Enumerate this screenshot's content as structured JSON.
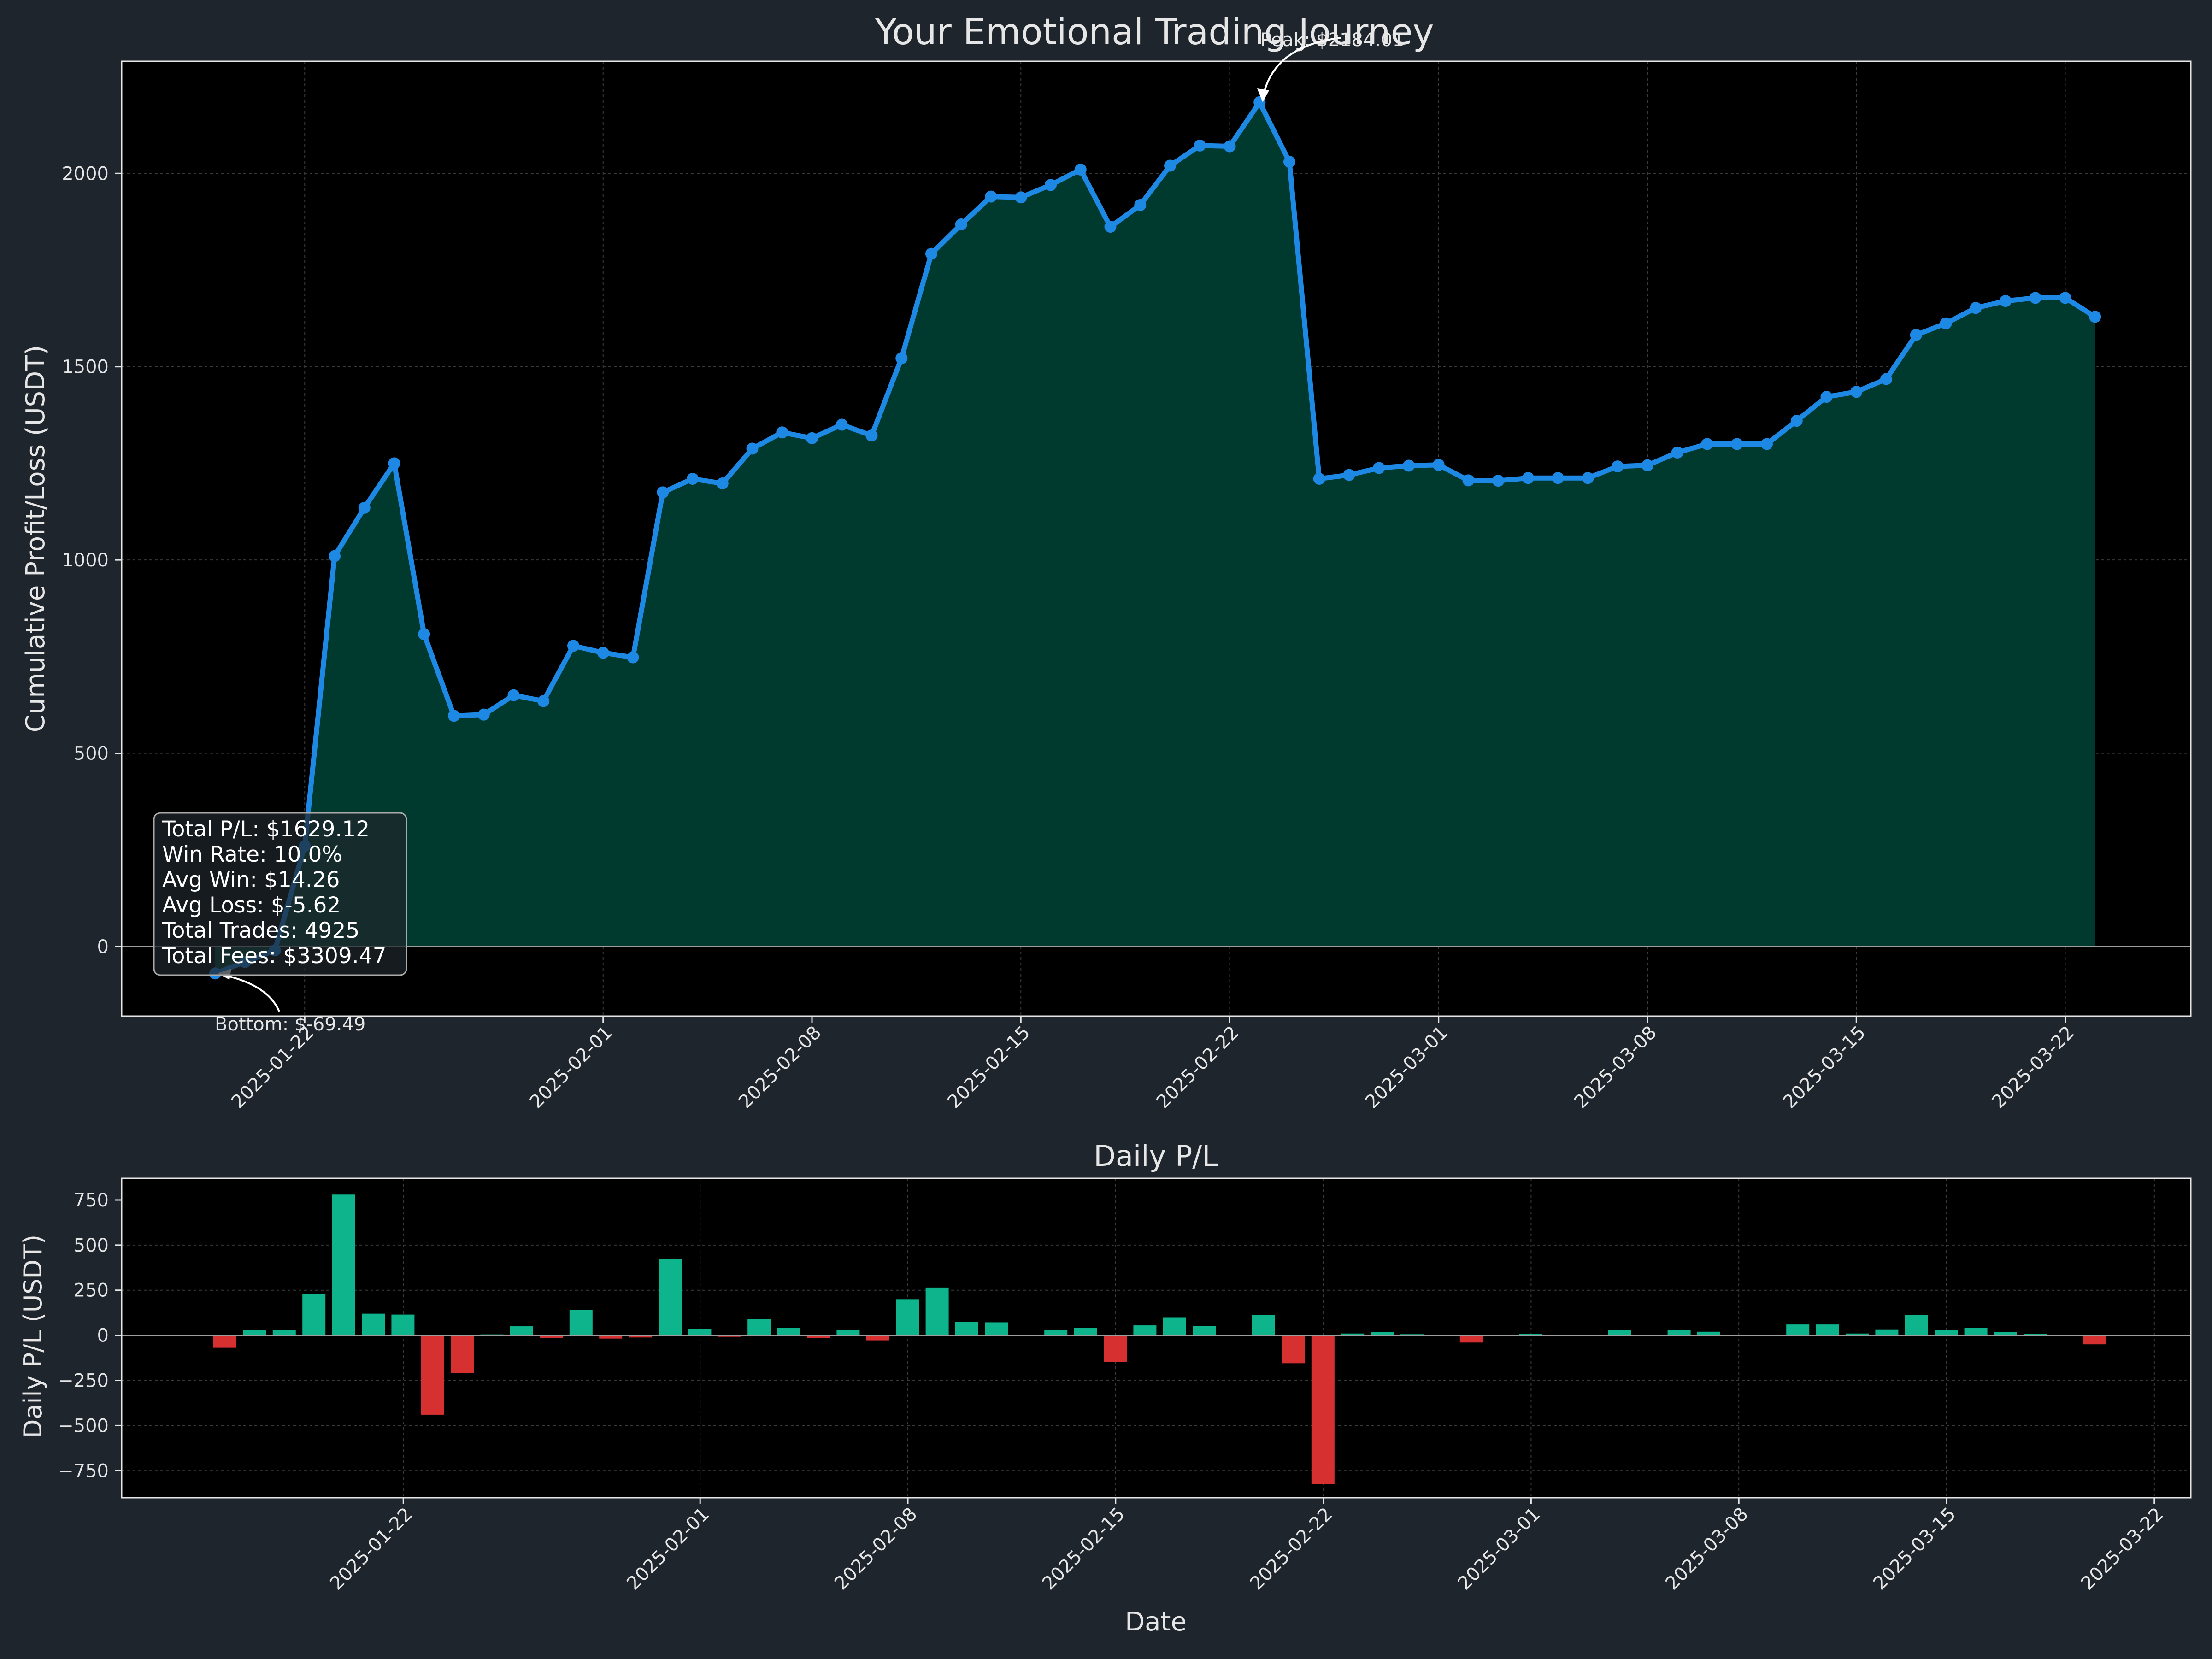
{
  "title": "Your Emotional Trading Journey",
  "colors": {
    "figure_bg": "#1f252d",
    "axes_bg": "#000000",
    "line": "#1e88e5",
    "fill": "#00392e",
    "pos_bar": "#0db48c",
    "neg_bar": "#d63031",
    "text": "#e6e6e6",
    "grid": "#3a3a3a",
    "zero_line": "#9e9e9e"
  },
  "stats": {
    "lines": [
      "Total P/L: $1629.12",
      "Win Rate: 10.0%",
      "Avg Win: $14.26",
      "Avg Loss: $-5.62",
      "Total Trades: 4925",
      "Total Fees: $3309.47"
    ]
  },
  "annotations": {
    "peak": "Peak: $2184.01",
    "bottom": "Bottom: $-69.49"
  },
  "chart_data": [
    {
      "type": "line",
      "title": "",
      "xlabel": "",
      "ylabel": "Cumulative Profit/Loss (USDT)",
      "x_start": "2025-01-19",
      "dates": [
        "2025-01-19",
        "2025-01-20",
        "2025-01-21",
        "2025-01-22",
        "2025-01-23",
        "2025-01-24",
        "2025-01-25",
        "2025-01-26",
        "2025-01-27",
        "2025-01-28",
        "2025-01-29",
        "2025-01-30",
        "2025-01-31",
        "2025-02-01",
        "2025-02-02",
        "2025-02-03",
        "2025-02-04",
        "2025-02-05",
        "2025-02-06",
        "2025-02-07",
        "2025-02-08",
        "2025-02-09",
        "2025-02-10",
        "2025-02-11",
        "2025-02-12",
        "2025-02-13",
        "2025-02-14",
        "2025-02-15",
        "2025-02-16",
        "2025-02-17",
        "2025-02-18",
        "2025-02-19",
        "2025-02-20",
        "2025-02-21",
        "2025-02-22",
        "2025-02-23",
        "2025-02-24",
        "2025-02-25",
        "2025-02-26",
        "2025-02-27",
        "2025-02-28",
        "2025-03-01",
        "2025-03-02",
        "2025-03-03",
        "2025-03-04",
        "2025-03-05",
        "2025-03-06",
        "2025-03-07",
        "2025-03-08",
        "2025-03-09",
        "2025-03-10",
        "2025-03-11",
        "2025-03-12",
        "2025-03-13",
        "2025-03-14",
        "2025-03-15",
        "2025-03-16",
        "2025-03-17",
        "2025-03-18",
        "2025-03-19",
        "2025-03-20",
        "2025-03-21",
        "2025-03-22",
        "2025-03-23"
      ],
      "values": [
        -69.49,
        -40,
        -10,
        260,
        1010,
        1135,
        1250,
        808,
        597,
        600,
        650,
        635,
        778,
        760,
        748,
        1175,
        1210,
        1198,
        1288,
        1330,
        1315,
        1350,
        1322,
        1522,
        1792,
        1868,
        1940,
        1938,
        1970,
        2010,
        1862,
        1918,
        2020,
        2072,
        2070,
        2184.01,
        2030,
        1210,
        1220,
        1238,
        1244,
        1246,
        1206,
        1205,
        1212,
        1212,
        1212,
        1242,
        1245,
        1278,
        1300,
        1300,
        1300,
        1360,
        1422,
        1435,
        1468,
        1582,
        1612,
        1652,
        1670,
        1678,
        1678,
        1629.12
      ],
      "ylim": [
        -180,
        2290
      ],
      "yticks": [
        0,
        500,
        1000,
        1500,
        2000
      ],
      "xtick_labels": [
        "2025-01-22",
        "2025-02-01",
        "2025-02-08",
        "2025-02-15",
        "2025-02-22",
        "2025-03-01",
        "2025-03-08",
        "2025-03-15",
        "2025-03-22"
      ],
      "grid": true
    },
    {
      "type": "bar",
      "title": "Daily P/L",
      "xlabel": "Date",
      "ylabel": "Daily P/L (USDT)",
      "dates": [
        "2025-01-19",
        "2025-01-20",
        "2025-01-21",
        "2025-01-22",
        "2025-01-23",
        "2025-01-24",
        "2025-01-25",
        "2025-01-26",
        "2025-01-27",
        "2025-01-28",
        "2025-01-29",
        "2025-01-30",
        "2025-01-31",
        "2025-02-01",
        "2025-02-02",
        "2025-02-03",
        "2025-02-04",
        "2025-02-05",
        "2025-02-06",
        "2025-02-07",
        "2025-02-08",
        "2025-02-09",
        "2025-02-10",
        "2025-02-11",
        "2025-02-12",
        "2025-02-13",
        "2025-02-14",
        "2025-02-15",
        "2025-02-16",
        "2025-02-17",
        "2025-02-18",
        "2025-02-19",
        "2025-02-20",
        "2025-02-21",
        "2025-02-22",
        "2025-02-23",
        "2025-02-24",
        "2025-02-25",
        "2025-02-26",
        "2025-02-27",
        "2025-02-28",
        "2025-03-01",
        "2025-03-02",
        "2025-03-03",
        "2025-03-04",
        "2025-03-05",
        "2025-03-06",
        "2025-03-07",
        "2025-03-08",
        "2025-03-09",
        "2025-03-10",
        "2025-03-11",
        "2025-03-12",
        "2025-03-13",
        "2025-03-14",
        "2025-03-15",
        "2025-03-16",
        "2025-03-17",
        "2025-03-18",
        "2025-03-19",
        "2025-03-20",
        "2025-03-21",
        "2025-03-22",
        "2025-03-23"
      ],
      "values": [
        -69,
        30,
        30,
        230,
        780,
        120,
        115,
        -440,
        -210,
        5,
        50,
        -15,
        140,
        -18,
        -12,
        425,
        35,
        -8,
        90,
        40,
        -15,
        30,
        -28,
        200,
        265,
        75,
        72,
        0,
        30,
        40,
        -148,
        55,
        100,
        52,
        0,
        112,
        -155,
        -825,
        10,
        18,
        6,
        3,
        -40,
        0,
        7,
        0,
        3,
        30,
        3,
        30,
        20,
        0,
        0,
        60,
        60,
        10,
        33,
        112,
        30,
        40,
        18,
        8,
        0,
        -50
      ],
      "ylim": [
        -900,
        870
      ],
      "yticks": [
        -750,
        -500,
        -250,
        0,
        250,
        500,
        750
      ],
      "ytick_labels": [
        "−750",
        "−500",
        "−250",
        "0",
        "250",
        "500",
        "750"
      ],
      "xtick_labels": [
        "2025-01-22",
        "2025-02-01",
        "2025-02-08",
        "2025-02-15",
        "2025-02-22",
        "2025-03-01",
        "2025-03-08",
        "2025-03-15",
        "2025-03-22"
      ],
      "grid": true
    }
  ]
}
